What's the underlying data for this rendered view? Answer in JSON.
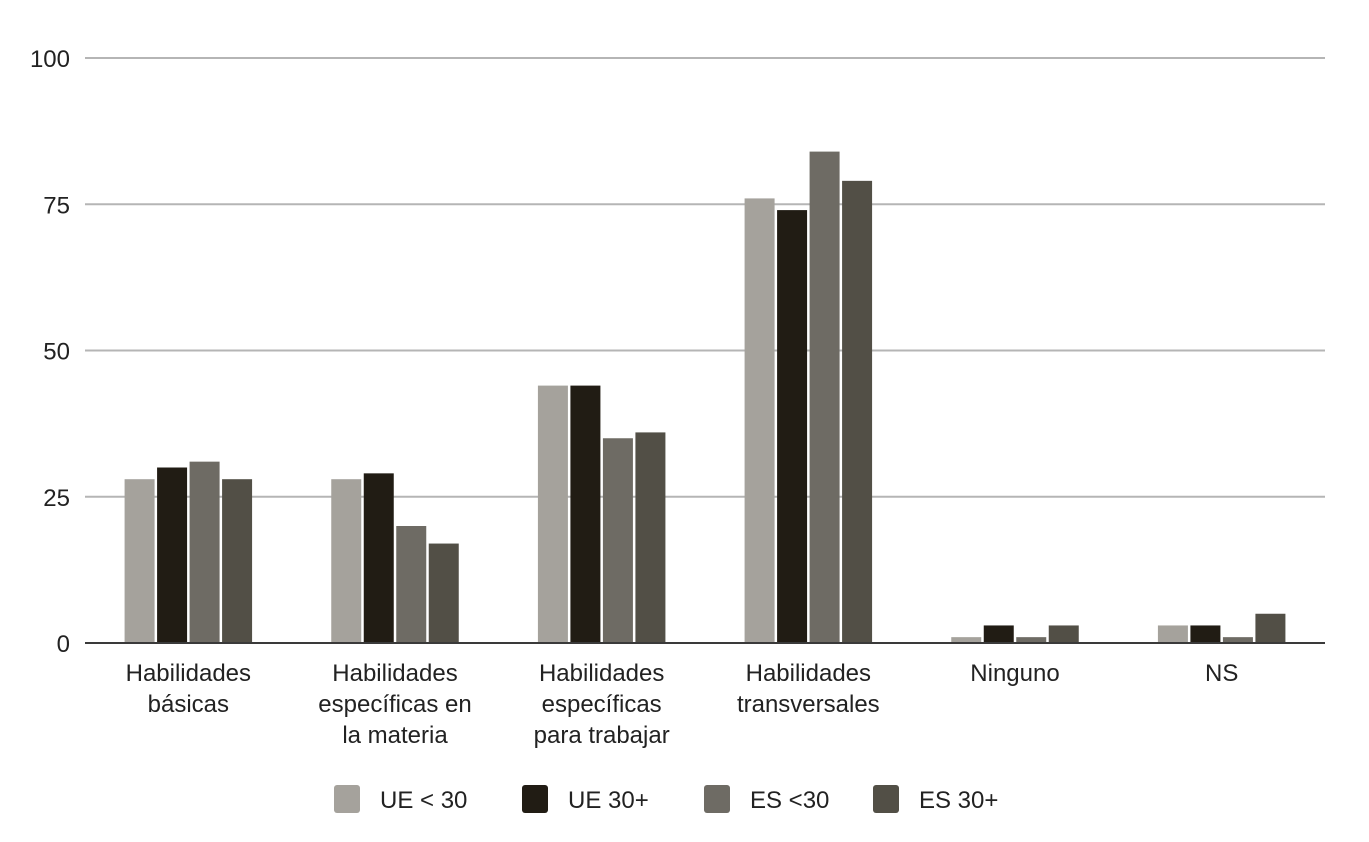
{
  "chart_data": {
    "type": "bar",
    "title": "",
    "xlabel": "",
    "ylabel": "",
    "ylim": [
      0,
      100
    ],
    "yticks": [
      0,
      25,
      50,
      75,
      100
    ],
    "grid": true,
    "legend_position": "bottom",
    "categories": [
      [
        "Habilidades",
        "básicas"
      ],
      [
        "Habilidades",
        "específicas en",
        "la materia"
      ],
      [
        "Habilidades",
        "específicas",
        "para trabajar"
      ],
      [
        "Habilidades",
        "transversales"
      ],
      [
        "Ninguno"
      ],
      [
        "NS"
      ]
    ],
    "series": [
      {
        "name": "UE < 30",
        "color": "#a5a29c",
        "values": [
          28,
          28,
          44,
          76,
          1,
          3
        ]
      },
      {
        "name": "UE 30+",
        "color": "#211c14",
        "values": [
          30,
          29,
          44,
          74,
          3,
          3
        ]
      },
      {
        "name": "ES <30",
        "color": "#6e6b64",
        "values": [
          31,
          20,
          35,
          84,
          1,
          1
        ]
      },
      {
        "name": "ES 30+",
        "color": "#524f46",
        "values": [
          28,
          17,
          36,
          79,
          3,
          5
        ]
      }
    ]
  }
}
